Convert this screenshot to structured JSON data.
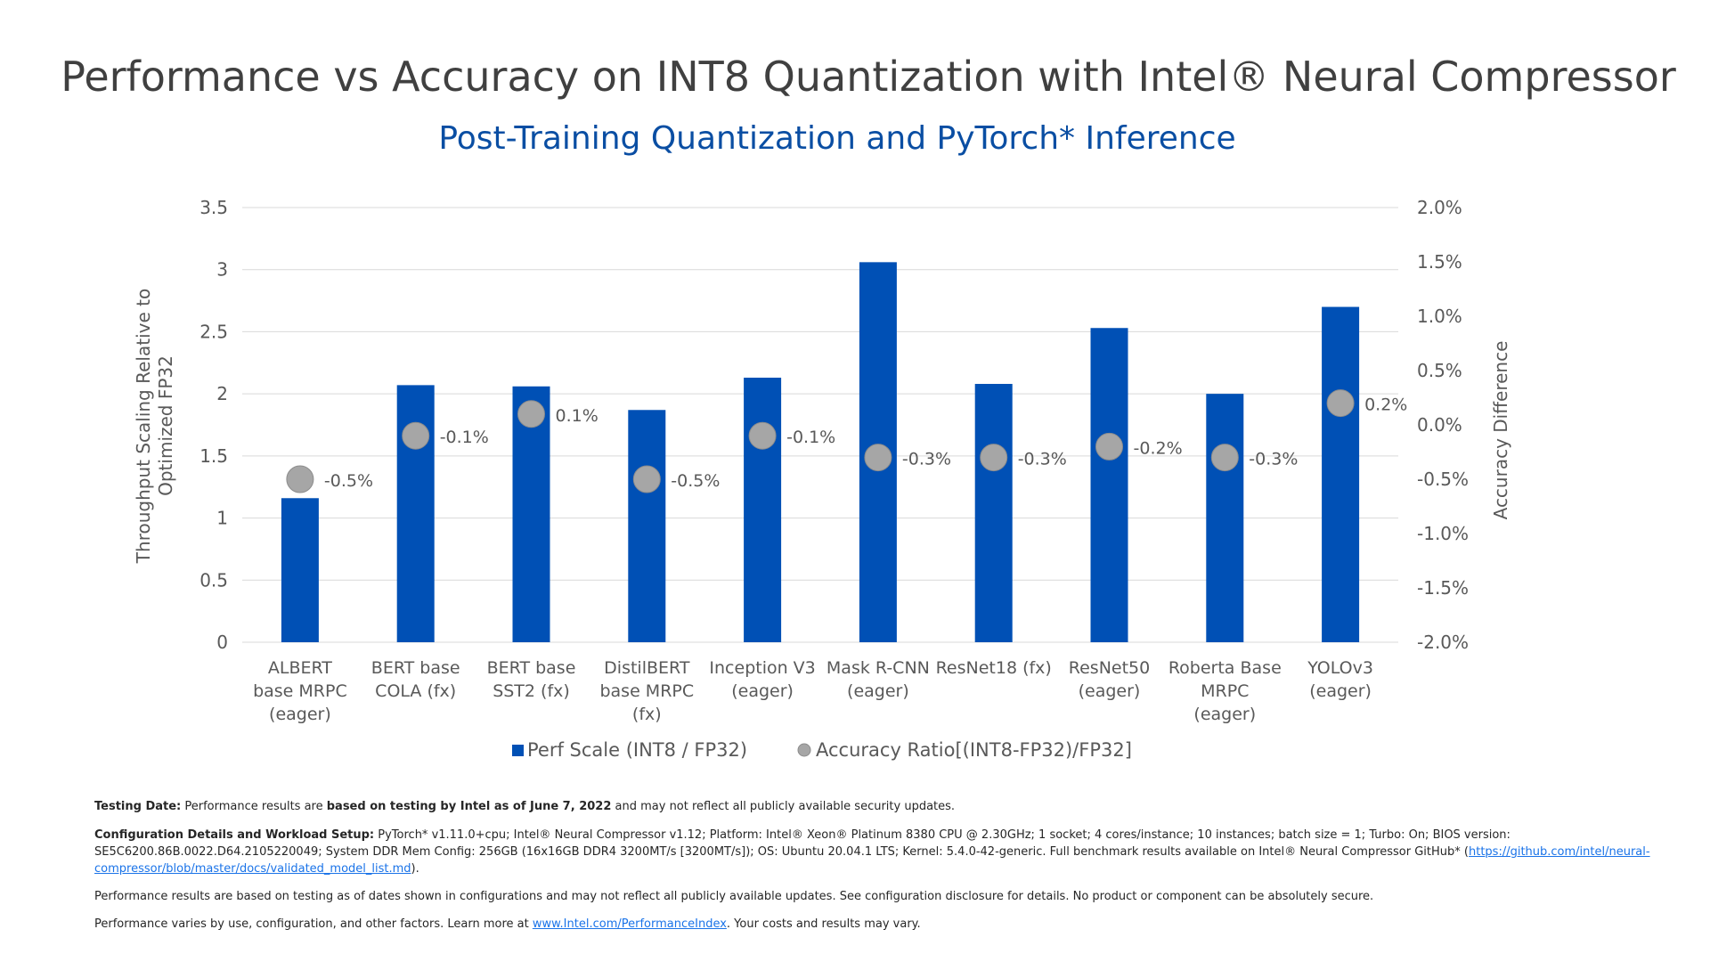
{
  "title": "Performance vs Accuracy on INT8 Quantization with Intel® Neural Compressor",
  "subtitle": "Post-Training Quantization and PyTorch* Inference",
  "colors": {
    "bar": "#0050b5",
    "dot": "#a6a6a6",
    "dot_stroke": "#8c8c8c",
    "subtitle": "#0a4ea3",
    "axis": "#595959",
    "grid": "#d9d9d9",
    "link": "#1a73e8"
  },
  "chart_data": {
    "type": "bar",
    "title": "Performance vs Accuracy on INT8 Quantization with Intel® Neural Compressor",
    "subtitle": "Post-Training Quantization and PyTorch* Inference",
    "categories": [
      [
        "ALBERT",
        "base MRPC",
        "(eager)"
      ],
      [
        "BERT base",
        "COLA (fx)"
      ],
      [
        "BERT base",
        "SST2 (fx)"
      ],
      [
        "DistilBERT",
        "base MRPC",
        "(fx)"
      ],
      [
        "Inception V3",
        "(eager)"
      ],
      [
        "Mask R-CNN",
        "(eager)"
      ],
      [
        "ResNet18 (fx)"
      ],
      [
        "ResNet50",
        "(eager)"
      ],
      [
        "Roberta Base",
        "MRPC",
        "(eager)"
      ],
      [
        "YOLOv3",
        "(eager)"
      ]
    ],
    "series": [
      {
        "name": "Perf Scale (INT8 / FP32)",
        "type": "bar",
        "axis": "left",
        "values": [
          1.16,
          2.07,
          2.06,
          1.87,
          2.13,
          3.06,
          2.08,
          2.53,
          2.0,
          2.7
        ]
      },
      {
        "name": "Accuracy Ratio[(INT8-FP32)/FP32]",
        "type": "scatter",
        "axis": "right",
        "values": [
          -0.5,
          -0.1,
          0.1,
          -0.5,
          -0.1,
          -0.3,
          -0.3,
          -0.2,
          -0.3,
          0.2
        ],
        "labels": [
          "-0.5%",
          "-0.1%",
          "0.1%",
          "-0.5%",
          "-0.1%",
          "-0.3%",
          "-0.3%",
          "-0.2%",
          "-0.3%",
          "0.2%"
        ]
      }
    ],
    "y_left": {
      "label_lines": [
        "Throughput Scaling Relative to",
        "Optimized FP32"
      ],
      "min": 0,
      "max": 3.5,
      "ticks": [
        0,
        0.5,
        1,
        1.5,
        2,
        2.5,
        3,
        3.5
      ],
      "tick_labels": [
        "0",
        "0.5",
        "1",
        "1.5",
        "2",
        "2.5",
        "3",
        "3.5"
      ]
    },
    "y_right": {
      "label": "Accuracy Difference",
      "min": -2.0,
      "max": 2.0,
      "ticks": [
        -2,
        -1.5,
        -1,
        -0.5,
        0,
        0.5,
        1,
        1.5,
        2
      ],
      "tick_labels": [
        "-2.0%",
        "-1.5%",
        "-1.0%",
        "-0.5%",
        "0.0%",
        "0.5%",
        "1.0%",
        "1.5%",
        "2.0%"
      ]
    },
    "grid": true,
    "legend_position": "bottom"
  },
  "footer": {
    "testing_label": "Testing Date:",
    "testing_pre": " Performance results are ",
    "testing_bold": "based on testing by Intel as of June 7, 2022",
    "testing_post": " and may not reflect all publicly available security updates.",
    "config_label": "Configuration Details and Workload Setup:",
    "config_text": "  PyTorch* v1.11.0+cpu; Intel® Neural Compressor v1.12; Platform: Intel® Xeon® Platinum 8380 CPU @ 2.30GHz; 1 socket; 4 cores/instance; 10 instances; batch size = 1; Turbo: On; BIOS version: SE5C6200.86B.0022.D64.2105220049; System DDR Mem Config: 256GB (16x16GB DDR4 3200MT/s [3200MT/s]); OS: Ubuntu 20.04.1 LTS; Kernel: 5.4.0-42-generic. Full benchmark results available on Intel® Neural Compressor GitHub* (",
    "config_link": "https://github.com/intel/neural-compressor/blob/master/docs/validated_model_list.md",
    "config_end": ").",
    "disclaimer": "Performance results are based on testing as of dates shown in configurations and may not reflect all publicly available updates. See configuration disclosure for details.  No product or component can be absolutely secure.",
    "varies_pre": "Performance varies by use, configuration, and other factors. Learn more at ",
    "varies_link": "www.Intel.com/PerformanceIndex",
    "varies_post": ". Your costs and results may vary."
  }
}
